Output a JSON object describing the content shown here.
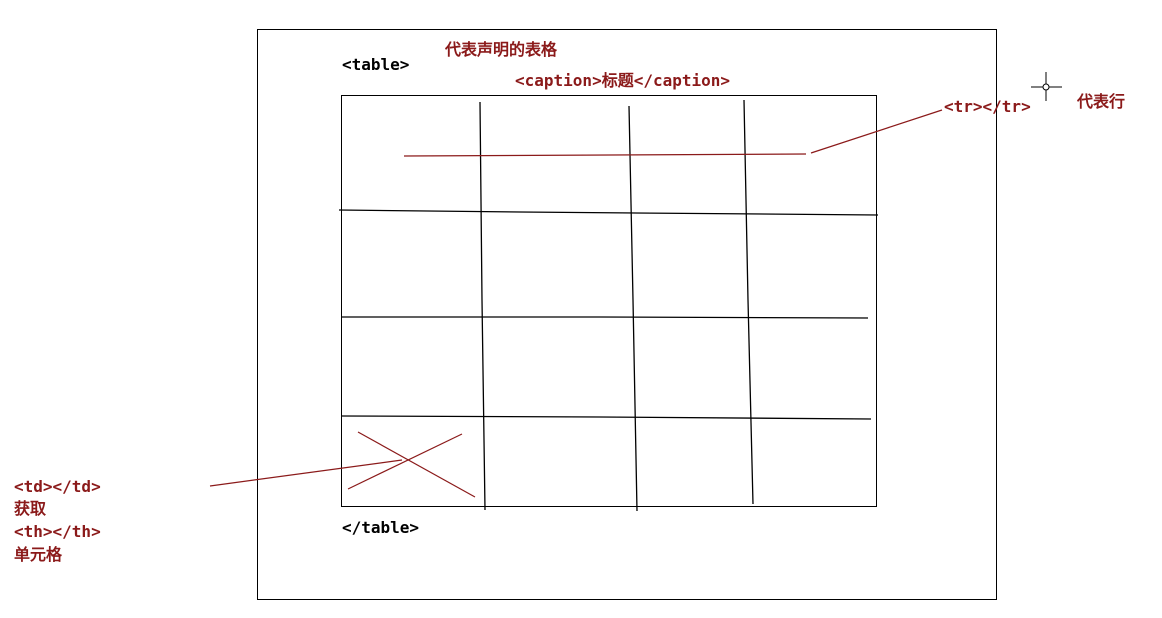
{
  "labels": {
    "table_open": "<table>",
    "table_declaration": "代表声明的表格",
    "caption": "<caption>标题</caption>",
    "tr_tag": "<tr></tr>",
    "tr_desc": "代表行",
    "table_close": "</table>",
    "td_tag": "<td></td>",
    "td_desc": "获取",
    "th_tag": "<th></th>",
    "cell_desc": "单元格"
  },
  "colors": {
    "black": "#000000",
    "annotation": "#8b1a1a"
  },
  "icons": {
    "cursor": "crosshair-cursor-icon"
  }
}
